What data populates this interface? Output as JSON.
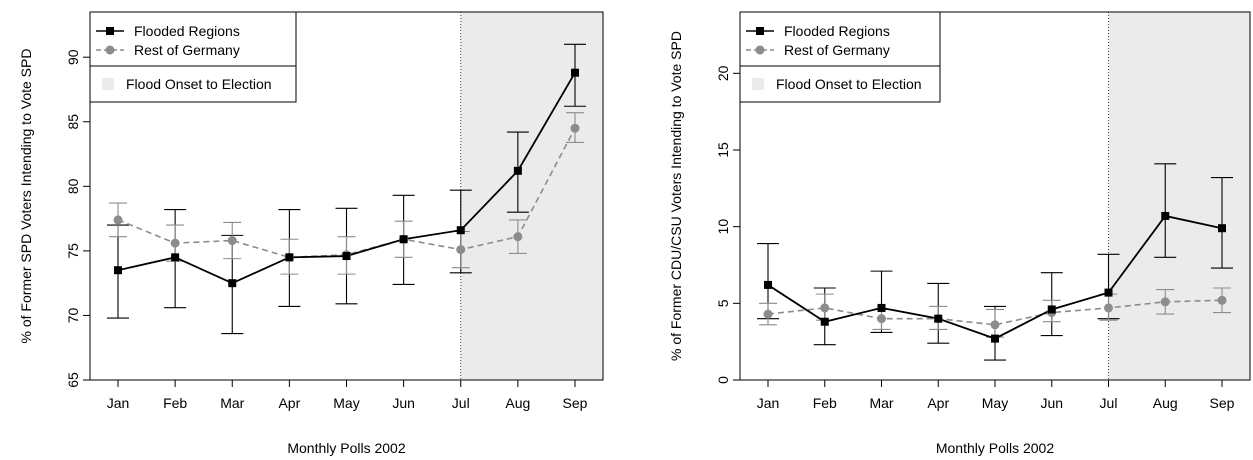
{
  "chart_data": [
    {
      "type": "line",
      "xlabel": "Monthly Polls 2002",
      "ylabel": "% of Former SPD Voters Intending to Vote SPD",
      "categories": [
        "Jan",
        "Feb",
        "Mar",
        "Apr",
        "May",
        "Jun",
        "Jul",
        "Aug",
        "Sep"
      ],
      "ylim": [
        65,
        93.5
      ],
      "yticks": [
        65,
        70,
        75,
        80,
        85,
        90
      ],
      "shaded_region": {
        "label": "Flood Onset to Election",
        "from": "Jul",
        "to": "Sep",
        "color": "#ebebeb"
      },
      "series": [
        {
          "name": "Flooded Regions",
          "color": "#000000",
          "dashed": false,
          "marker": "square",
          "values": [
            73.5,
            74.5,
            72.5,
            74.5,
            74.6,
            75.9,
            76.6,
            81.2,
            88.8
          ],
          "lower": [
            69.8,
            70.6,
            68.6,
            70.7,
            70.9,
            72.4,
            73.3,
            78.0,
            86.2
          ],
          "upper": [
            77.0,
            78.2,
            76.2,
            78.2,
            78.3,
            79.3,
            79.7,
            84.2,
            91.0
          ]
        },
        {
          "name": "Rest of Germany",
          "color": "#8c8c8c",
          "dashed": true,
          "marker": "circle",
          "values": [
            77.4,
            75.6,
            75.8,
            74.5,
            74.7,
            75.9,
            75.1,
            76.1,
            84.5
          ],
          "lower": [
            76.1,
            74.2,
            74.4,
            73.2,
            73.2,
            74.5,
            73.7,
            74.8,
            83.4
          ],
          "upper": [
            78.7,
            77.0,
            77.2,
            75.9,
            76.1,
            77.3,
            76.5,
            77.4,
            85.7
          ]
        }
      ]
    },
    {
      "type": "line",
      "xlabel": "Monthly Polls 2002",
      "ylabel": "% of Former CDU/CSU Voters Intending to Vote SPD",
      "categories": [
        "Jan",
        "Feb",
        "Mar",
        "Apr",
        "May",
        "Jun",
        "Jul",
        "Aug",
        "Sep"
      ],
      "ylim": [
        0,
        24
      ],
      "yticks": [
        0,
        5,
        10,
        15,
        20
      ],
      "shaded_region": {
        "label": "Flood Onset to Election",
        "from": "Jul",
        "to": "Sep",
        "color": "#ebebeb"
      },
      "series": [
        {
          "name": "Flooded Regions",
          "color": "#000000",
          "dashed": false,
          "marker": "square",
          "values": [
            6.2,
            3.8,
            4.7,
            4.0,
            2.7,
            4.6,
            5.7,
            10.7,
            9.9
          ],
          "lower": [
            4.0,
            2.3,
            3.1,
            2.4,
            1.3,
            2.9,
            4.0,
            8.0,
            7.3
          ],
          "upper": [
            8.9,
            6.0,
            7.1,
            6.3,
            4.8,
            7.0,
            8.2,
            14.1,
            13.2
          ]
        },
        {
          "name": "Rest of Germany",
          "color": "#8c8c8c",
          "dashed": true,
          "marker": "circle",
          "values": [
            4.3,
            4.7,
            4.0,
            4.0,
            3.6,
            4.4,
            4.7,
            5.1,
            5.2
          ],
          "lower": [
            3.6,
            3.9,
            3.3,
            3.3,
            2.8,
            3.8,
            3.9,
            4.3,
            4.4
          ],
          "upper": [
            5.0,
            5.6,
            4.6,
            4.8,
            4.6,
            5.2,
            5.6,
            5.9,
            6.0
          ]
        }
      ]
    }
  ]
}
